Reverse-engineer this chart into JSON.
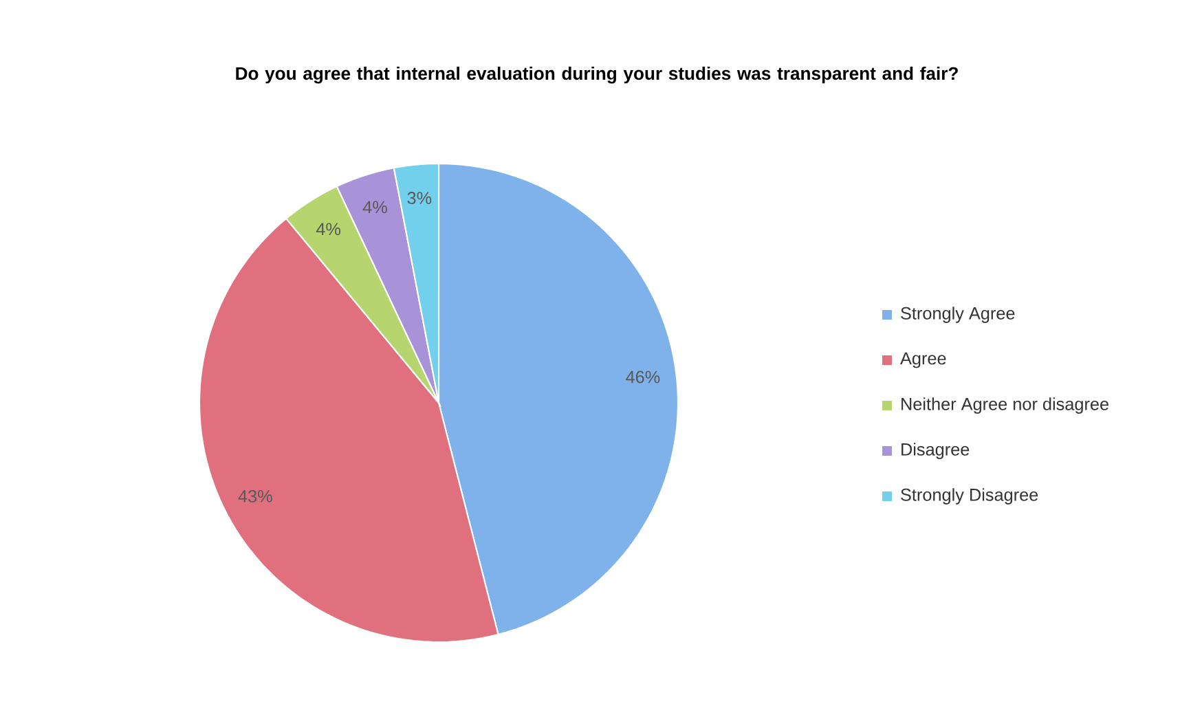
{
  "chart_data": {
    "type": "pie",
    "title": "Do you agree that internal evaluation during your studies was transparent and fair?",
    "categories": [
      "Strongly Agree",
      "Agree",
      "Neither Agree nor disagree",
      "Disagree",
      "Strongly Disagree"
    ],
    "values": [
      46,
      43,
      4,
      4,
      3
    ],
    "value_labels": [
      "46%",
      "43%",
      "4%",
      "4%",
      "3%"
    ],
    "colors": [
      "#7fb2ea",
      "#e0707e",
      "#b7d56e",
      "#a993d8",
      "#72d0ec"
    ],
    "legend": "right"
  }
}
